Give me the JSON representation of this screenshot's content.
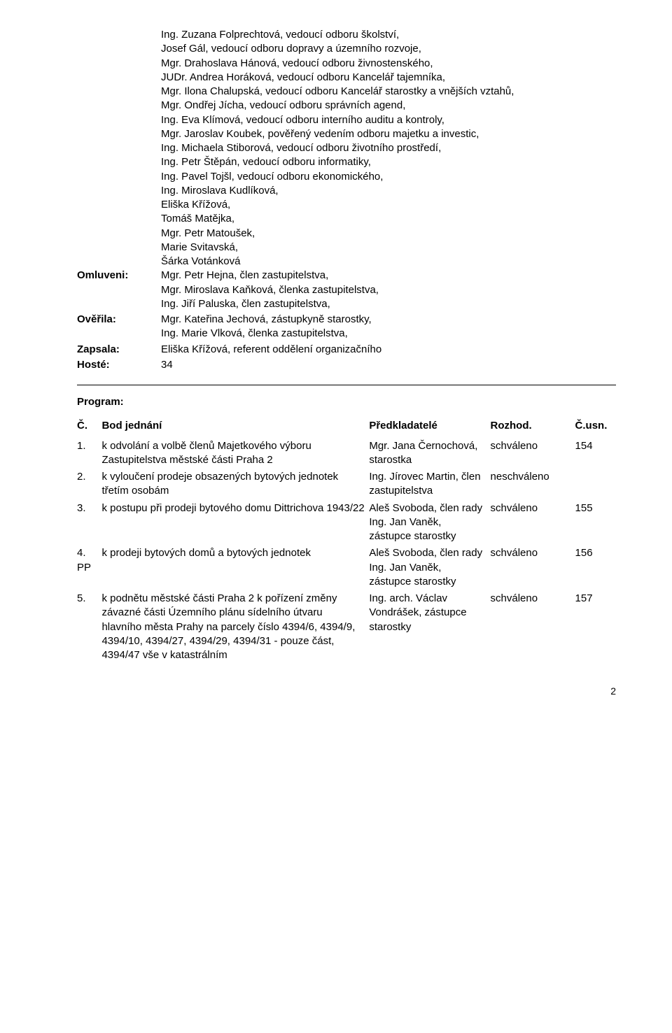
{
  "attendees_top": [
    "Ing. Zuzana Folprechtová, vedoucí odboru školství,",
    "Josef Gál, vedoucí odboru dopravy a územního rozvoje,",
    "Mgr. Drahoslava Hánová, vedoucí odboru živnostenského,",
    "JUDr. Andrea Horáková, vedoucí odboru Kancelář tajemníka,",
    "Mgr. Ilona Chalupská, vedoucí odboru Kancelář starostky a vnějších vztahů,",
    "Mgr. Ondřej Jícha, vedoucí odboru správních agend,",
    "Ing. Eva Klímová, vedoucí odboru interního auditu a kontroly,",
    "Mgr. Jaroslav Koubek, pověřený vedením odboru majetku a investic,",
    "Ing. Michaela Stiborová, vedoucí odboru životního prostředí,",
    "Ing. Petr Štěpán, vedoucí odboru informatiky,",
    "Ing. Pavel Tojšl, vedoucí odboru ekonomického,",
    "Ing. Miroslava Kudlíková,",
    "Eliška Křížová,",
    "Tomáš Matějka,",
    "Mgr. Petr Matoušek,",
    "Marie Svitavská,",
    "Šárka Votánková"
  ],
  "sections": {
    "omluveni": {
      "label": "Omluveni:",
      "lines": [
        "Mgr. Petr Hejna, člen zastupitelstva,",
        "Mgr. Miroslava Kaňková, členka zastupitelstva,",
        "Ing. Jiří Paluska, člen zastupitelstva,"
      ]
    },
    "overila": {
      "label": "Ověřila:",
      "lines": [
        "Mgr. Kateřina Jechová, zástupkyně starostky,",
        "Ing. Marie Vlková, členka zastupitelstva,"
      ]
    },
    "zapsala": {
      "label": "Zapsala:",
      "lines": [
        "Eliška Křížová, referent oddělení organizačního"
      ]
    },
    "hoste": {
      "label": "Hosté:",
      "lines": [
        "34"
      ]
    }
  },
  "program": {
    "heading": "Program:",
    "columns": {
      "num": "Č.",
      "topic": "Bod jednání",
      "presenter": "Předkladatelé",
      "decision": "Rozhod.",
      "usn": "Č.usn."
    },
    "rows": [
      {
        "num": "1.",
        "topic": "k odvolání a volbě členů Majetkového výboru Zastupitelstva městské části Praha 2",
        "presenter": "Mgr. Jana Černochová, starostka",
        "decision": "schváleno",
        "usn": "154"
      },
      {
        "num": "2.",
        "topic": "k vyloučení prodeje obsazených bytových jednotek třetím osobám",
        "presenter": "Ing. Jírovec Martin, člen zastupitelstva",
        "decision": "neschváleno",
        "usn": ""
      },
      {
        "num": "3.",
        "topic": "k postupu při prodeji bytového domu Dittrichova 1943/22",
        "presenter": "Aleš Svoboda, člen rady\nIng. Jan Vaněk, zástupce starostky",
        "decision": "schváleno",
        "usn": "155"
      },
      {
        "num": "4.\nPP",
        "topic": "k prodeji bytových domů a bytových jednotek",
        "presenter": "Aleš Svoboda, člen rady\nIng. Jan Vaněk, zástupce starostky",
        "decision": "schváleno",
        "usn": "156"
      },
      {
        "num": "5.",
        "topic": "k podnětu městské části Praha 2 k pořízení změny závazné části Územního plánu sídelního útvaru hlavního města Prahy na parcely číslo 4394/6, 4394/9, 4394/10, 4394/27, 4394/29, 4394/31 - pouze část, 4394/47 vše v katastrálním",
        "presenter": "Ing. arch. Václav Vondrášek, zástupce starostky",
        "decision": "schváleno",
        "usn": "157"
      }
    ]
  },
  "page_number": "2"
}
